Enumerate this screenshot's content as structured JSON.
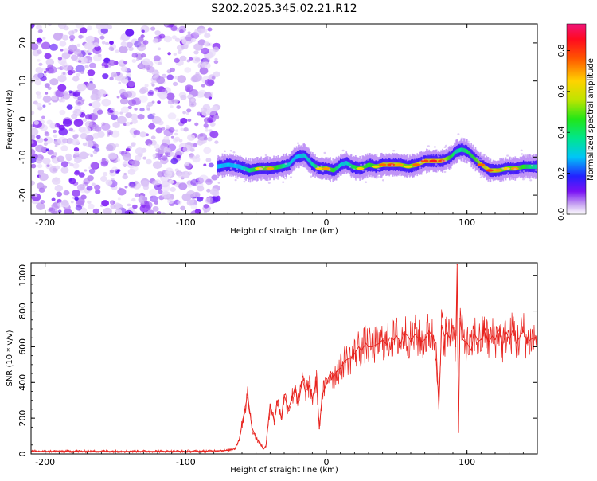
{
  "figure": {
    "title": "S202.2025.345.02.21.R12"
  },
  "chart_data": [
    {
      "type": "heatmap",
      "name": "spectrogram",
      "title": "S202.2025.345.02.21.R12",
      "xlabel": "Height of straight line (km)",
      "ylabel": "Frequency (Hz)",
      "xlim": [
        -210,
        150
      ],
      "ylim": [
        -25,
        25
      ],
      "xticks": [
        -200,
        -100,
        0,
        100
      ],
      "yticks": [
        -20,
        -10,
        0,
        10,
        20
      ],
      "xtick_labels": [
        "-200",
        "-100",
        "0",
        "100"
      ],
      "ytick_labels": [
        "-20",
        "-10",
        "0",
        "10",
        "20"
      ],
      "grid": false,
      "noise_region": {
        "x": [
          -210,
          -78
        ],
        "frequency": [
          -25,
          25
        ],
        "level": 0.1
      },
      "signal_ridge": {
        "x": [
          -78,
          -70,
          -62,
          -55,
          -48,
          -40,
          -33,
          -27,
          -22,
          -16,
          -10,
          -5,
          0,
          5,
          10,
          14,
          18,
          24,
          30,
          35,
          40,
          46,
          52,
          58,
          64,
          70,
          76,
          82,
          88,
          92,
          96,
          100,
          104,
          110,
          116,
          122,
          128,
          134,
          140,
          146,
          150
        ],
        "frequency": [
          -12.5,
          -12,
          -12.5,
          -13.5,
          -13,
          -13,
          -12.5,
          -12,
          -10,
          -9.5,
          -12,
          -13,
          -13,
          -13.5,
          -12,
          -11.5,
          -12.5,
          -13,
          -12,
          -12.5,
          -12,
          -12,
          -12,
          -12.5,
          -12,
          -11,
          -11,
          -11,
          -10,
          -8.5,
          -8,
          -8.5,
          -10,
          -12,
          -13.5,
          -13.5,
          -13,
          -13,
          -12.5,
          -12.5,
          -12.5
        ],
        "amplitude": [
          0.25,
          0.35,
          0.4,
          0.55,
          0.7,
          0.75,
          0.6,
          0.45,
          0.4,
          0.45,
          0.5,
          0.7,
          0.75,
          0.65,
          0.45,
          0.45,
          0.6,
          0.7,
          0.65,
          0.7,
          0.8,
          0.85,
          0.75,
          0.7,
          0.8,
          0.85,
          0.9,
          0.85,
          0.65,
          0.5,
          0.55,
          0.6,
          0.65,
          0.8,
          0.85,
          0.75,
          0.7,
          0.75,
          0.65,
          0.55,
          0.5
        ]
      },
      "colorbar": {
        "label": "Normalized spectral amplitude",
        "range": [
          0,
          0.93
        ],
        "ticks": [
          0.0,
          0.2,
          0.4,
          0.6,
          0.8
        ],
        "tick_labels": [
          "0.0",
          "0.2",
          "0.4",
          "0.6",
          "0.8"
        ]
      }
    },
    {
      "type": "line",
      "name": "snr",
      "xlabel": "Height of straight line (km)",
      "ylabel": "SNR (10 * v/v)",
      "xlim": [
        -210,
        150
      ],
      "ylim": [
        0,
        1070
      ],
      "xticks": [
        -200,
        -100,
        0,
        100
      ],
      "yticks": [
        0,
        200,
        400,
        600,
        800,
        1000
      ],
      "xtick_labels": [
        "-200",
        "-100",
        "0",
        "100"
      ],
      "ytick_labels": [
        "0",
        "200",
        "400",
        "600",
        "800",
        "1000"
      ],
      "grid": false,
      "series": [
        {
          "color": "#e8231e",
          "x": [
            -210,
            -180,
            -150,
            -120,
            -90,
            -70,
            -65,
            -62,
            -58,
            -56,
            -53,
            -50,
            -47,
            -45,
            -43,
            -40,
            -37,
            -35,
            -32,
            -30,
            -27,
            -25,
            -22,
            -20,
            -17,
            -15,
            -12,
            -10,
            -7,
            -5,
            -3,
            0,
            3,
            5,
            8,
            10,
            13,
            15,
            18,
            20,
            23,
            25,
            28,
            30,
            33,
            35,
            38,
            40,
            43,
            45,
            48,
            50,
            53,
            55,
            58,
            60,
            63,
            65,
            68,
            70,
            73,
            75,
            78,
            80,
            82,
            84,
            86,
            88,
            90,
            92,
            93,
            94,
            95,
            97,
            100,
            103,
            105,
            108,
            110,
            113,
            115,
            118,
            120,
            123,
            125,
            128,
            130,
            133,
            135,
            138,
            140,
            143,
            145,
            148,
            150
          ],
          "y": [
            15,
            15,
            15,
            15,
            15,
            20,
            30,
            80,
            250,
            330,
            150,
            90,
            60,
            30,
            40,
            280,
            180,
            300,
            200,
            330,
            250,
            300,
            380,
            270,
            420,
            350,
            380,
            310,
            410,
            140,
            330,
            390,
            460,
            430,
            470,
            480,
            520,
            530,
            540,
            560,
            600,
            580,
            620,
            600,
            600,
            610,
            620,
            640,
            610,
            650,
            640,
            660,
            620,
            680,
            660,
            630,
            670,
            650,
            630,
            640,
            690,
            660,
            620,
            250,
            720,
            660,
            680,
            640,
            720,
            600,
            1060,
            120,
            760,
            640,
            620,
            580,
            680,
            630,
            640,
            700,
            620,
            660,
            640,
            700,
            600,
            680,
            640,
            700,
            620,
            660,
            690,
            620,
            640,
            650,
            660
          ]
        }
      ]
    }
  ]
}
